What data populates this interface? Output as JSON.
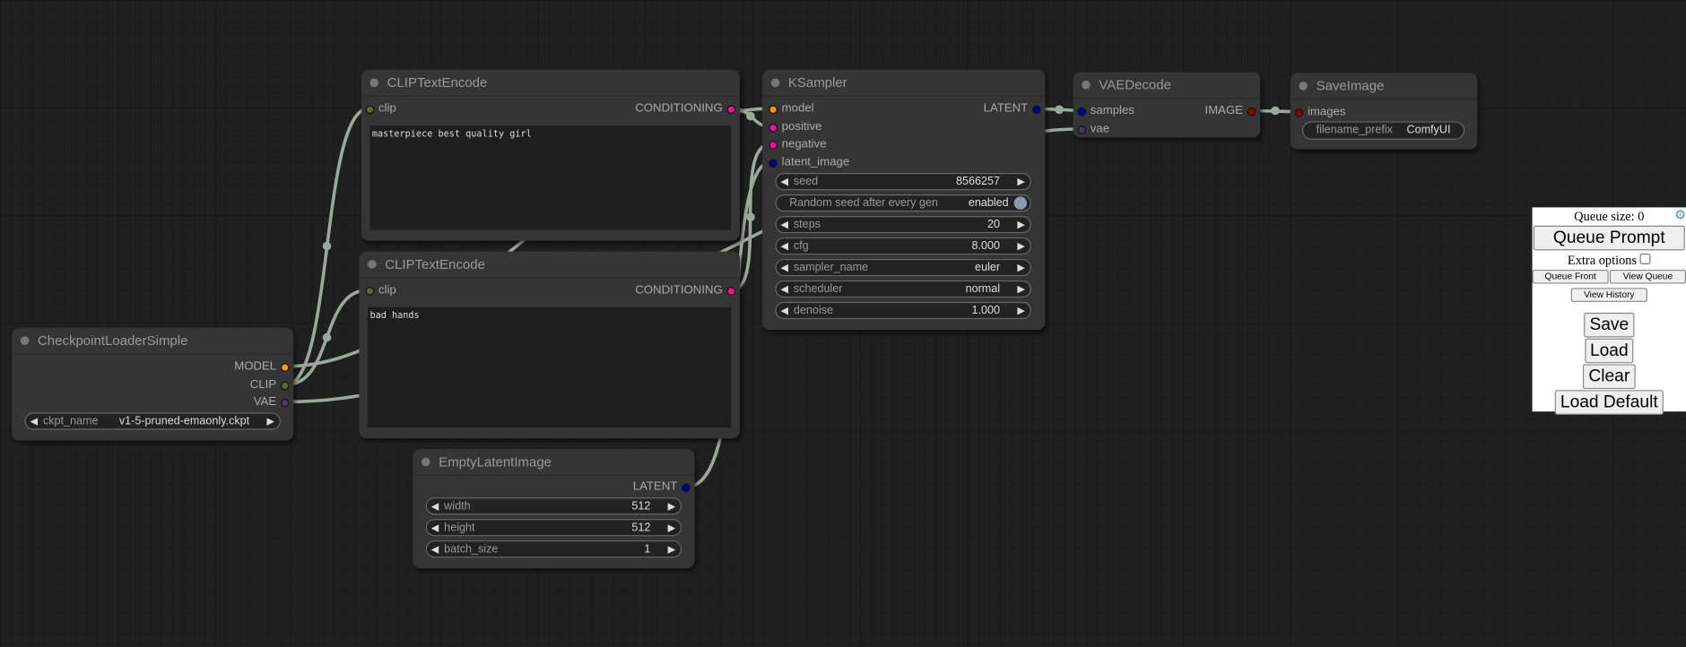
{
  "colors": {
    "model": "#ff9900",
    "clip": "#556b2f",
    "vae": "#4a3a5a",
    "conditioning": "#ff0aa0",
    "latent": "#000090",
    "image": "#900000",
    "link": "#9aa99a"
  },
  "clip1": {
    "title": "CLIPTextEncode",
    "input": "clip",
    "output": "CONDITIONING",
    "text": "masterpiece best quality girl"
  },
  "clip2": {
    "title": "CLIPTextEncode",
    "input": "clip",
    "output": "CONDITIONING",
    "text": "bad hands"
  },
  "ckpt": {
    "title": "CheckpointLoaderSimple",
    "outputs": [
      "MODEL",
      "CLIP",
      "VAE"
    ],
    "widget": {
      "label": "ckpt_name",
      "value": "v1-5-pruned-emaonly.ckpt"
    }
  },
  "latent": {
    "title": "EmptyLatentImage",
    "output": "LATENT",
    "widgets": [
      {
        "label": "width",
        "value": "512"
      },
      {
        "label": "height",
        "value": "512"
      },
      {
        "label": "batch_size",
        "value": "1"
      }
    ]
  },
  "ksampler": {
    "title": "KSampler",
    "inputs": [
      "model",
      "positive",
      "negative",
      "latent_image"
    ],
    "output": "LATENT",
    "widgets": [
      {
        "label": "seed",
        "value": "8566257"
      },
      {
        "label": "Random seed after every gen",
        "value": "enabled"
      },
      {
        "label": "steps",
        "value": "20"
      },
      {
        "label": "cfg",
        "value": "8.000"
      },
      {
        "label": "sampler_name",
        "value": "euler"
      },
      {
        "label": "scheduler",
        "value": "normal"
      },
      {
        "label": "denoise",
        "value": "1.000"
      }
    ]
  },
  "vaedecode": {
    "title": "VAEDecode",
    "inputs": [
      "samples",
      "vae"
    ],
    "output": "IMAGE"
  },
  "saveimage": {
    "title": "SaveImage",
    "input": "images",
    "widget": {
      "label": "filename_prefix",
      "value": "ComfyUI"
    }
  },
  "panel": {
    "queue_size": "Queue size: 0",
    "queue_prompt": "Queue Prompt",
    "extra_options": "Extra options",
    "queue_front": "Queue Front",
    "view_queue": "View Queue",
    "view_history": "View History",
    "save": "Save",
    "load": "Load",
    "clear": "Clear",
    "load_default": "Load Default",
    "settings_icon": "gear-icon"
  }
}
